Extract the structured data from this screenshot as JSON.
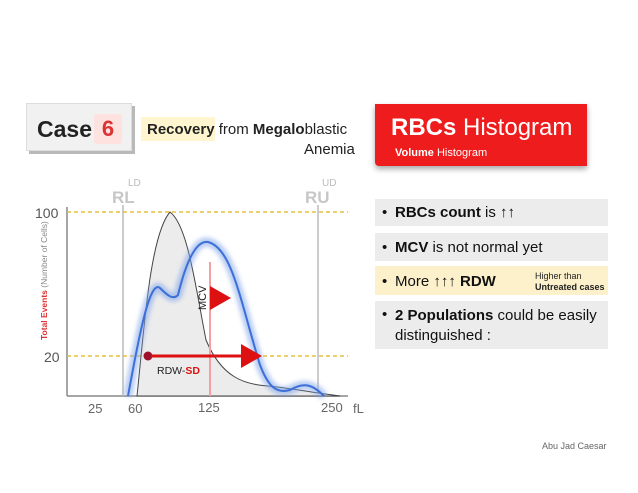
{
  "header": {
    "case_label": "Case",
    "case_number": "6",
    "subtitle_line1_bold1": "Recovery",
    "subtitle_line1_plain1": " from ",
    "subtitle_line1_bold2": "Megalo",
    "subtitle_line1_plain2": "blastic",
    "subtitle_line2": "Anemia",
    "title_bold": "RBCs",
    "title_rest": " Histogram",
    "title_sub_bold": "Volume",
    "title_sub_rest": " Histogram"
  },
  "chart": {
    "y_axis_label": "Total Events (Number of Cells)",
    "y_ticks": [
      "100",
      "20"
    ],
    "x_ticks": [
      "25",
      "60",
      "125",
      "250"
    ],
    "x_unit": "fL",
    "ld_label": "LD",
    "rl_label": "RL",
    "ud_label": "UD",
    "ru_label": "RU",
    "mcv_label": "MCV",
    "rdw_label_prefix": "RDW-",
    "rdw_label_suffix": "SD"
  },
  "points": [
    {
      "prefix": "",
      "bold": "RBCs count",
      "suffix": " is ↑↑"
    },
    {
      "prefix": "",
      "bold": "MCV",
      "suffix": " is not normal yet"
    },
    {
      "prefix": "More ",
      "bold": "↑↑↑ RDW",
      "suffix": "",
      "note_line1": "Higher than",
      "note_line2": "Untreated cases"
    },
    {
      "prefix": "",
      "bold": "2 Populations",
      "suffix": " could be easily",
      "line2": "distinguished :"
    }
  ],
  "credit": "Abu Jad Caesar",
  "colors": {
    "accent_red": "#ee1c1c",
    "arrow_red": "#dd1111",
    "curve_blue": "#7ea3e8",
    "dashed_yellow": "#e3b21a",
    "info_gray": "#ececec",
    "info_yellow": "#fdf1cb"
  }
}
